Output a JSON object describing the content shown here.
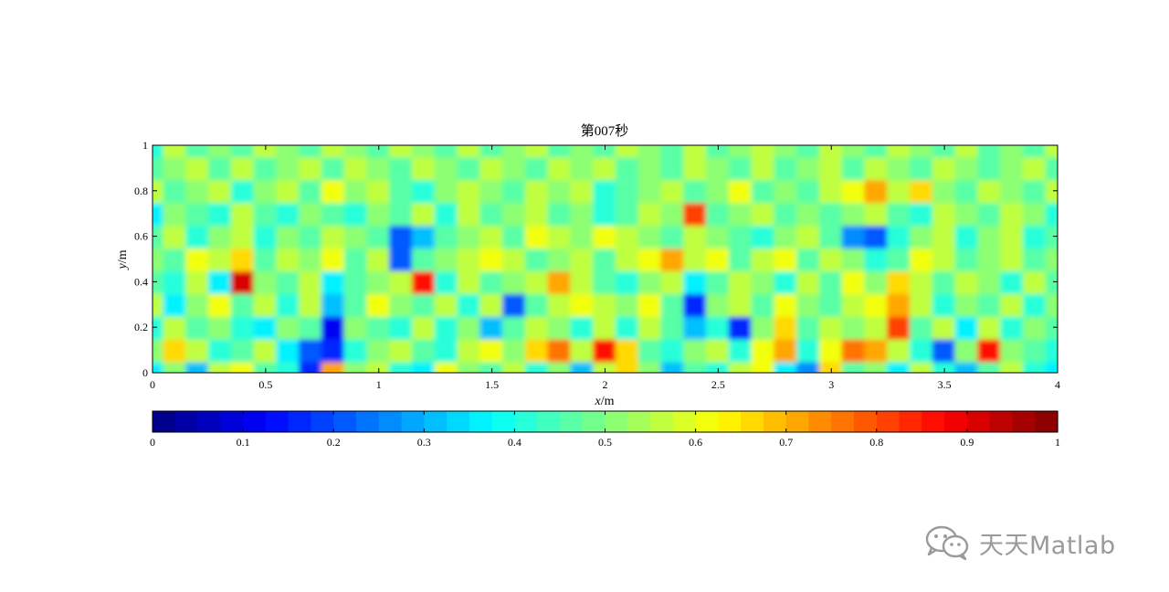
{
  "chart_data": {
    "type": "heatmap",
    "title": "第007秒",
    "xlabel_var": "x",
    "xlabel_unit": "/m",
    "ylabel_var": "y",
    "ylabel_unit": "/m",
    "xlim": [
      0,
      4
    ],
    "ylim": [
      0,
      1
    ],
    "xticks": [
      "0",
      "0.5",
      "1",
      "1.5",
      "2",
      "2.5",
      "3",
      "3.5",
      "4"
    ],
    "yticks": [
      "0",
      "0.2",
      "0.4",
      "0.6",
      "0.8",
      "1"
    ],
    "colorbar": {
      "orientation": "horizontal",
      "location": "below",
      "range": [
        0,
        1
      ],
      "levels": 40,
      "ticks": [
        "0",
        "0.1",
        "0.2",
        "0.3",
        "0.4",
        "0.5",
        "0.6",
        "0.7",
        "0.8",
        "0.9",
        "1"
      ],
      "colormap": "jet"
    },
    "grid": false,
    "legend": "none",
    "z_rows_y0_to_y1": [
      [
        0.35,
        0.5,
        0.3,
        0.55,
        0.6,
        0.45,
        0.4,
        0.15,
        0.7,
        0.5,
        0.55,
        0.4,
        0.35,
        0.6,
        0.5,
        0.45,
        0.55,
        0.4,
        0.5,
        0.3,
        0.55,
        0.65,
        0.5,
        0.3,
        0.45,
        0.4,
        0.55,
        0.6,
        0.35,
        0.25,
        0.65,
        0.45,
        0.5,
        0.35,
        0.55,
        0.4,
        0.3,
        0.45,
        0.55,
        0.4,
        0.35
      ],
      [
        0.5,
        0.65,
        0.55,
        0.4,
        0.45,
        0.55,
        0.35,
        0.2,
        0.15,
        0.4,
        0.5,
        0.55,
        0.45,
        0.4,
        0.55,
        0.6,
        0.5,
        0.65,
        0.75,
        0.55,
        0.85,
        0.65,
        0.45,
        0.4,
        0.5,
        0.55,
        0.4,
        0.6,
        0.7,
        0.4,
        0.6,
        0.75,
        0.7,
        0.55,
        0.4,
        0.2,
        0.5,
        0.85,
        0.5,
        0.45,
        0.4
      ],
      [
        0.4,
        0.55,
        0.45,
        0.5,
        0.4,
        0.35,
        0.5,
        0.45,
        0.1,
        0.5,
        0.45,
        0.4,
        0.55,
        0.4,
        0.5,
        0.3,
        0.45,
        0.55,
        0.5,
        0.4,
        0.55,
        0.4,
        0.55,
        0.45,
        0.3,
        0.4,
        0.15,
        0.5,
        0.65,
        0.45,
        0.55,
        0.5,
        0.55,
        0.8,
        0.45,
        0.55,
        0.35,
        0.55,
        0.4,
        0.5,
        0.45
      ],
      [
        0.55,
        0.35,
        0.5,
        0.6,
        0.45,
        0.55,
        0.4,
        0.55,
        0.3,
        0.45,
        0.6,
        0.5,
        0.45,
        0.55,
        0.4,
        0.55,
        0.2,
        0.45,
        0.55,
        0.6,
        0.55,
        0.5,
        0.6,
        0.45,
        0.15,
        0.5,
        0.55,
        0.45,
        0.6,
        0.5,
        0.45,
        0.55,
        0.6,
        0.7,
        0.55,
        0.4,
        0.5,
        0.45,
        0.55,
        0.4,
        0.5
      ],
      [
        0.45,
        0.4,
        0.55,
        0.35,
        0.9,
        0.5,
        0.45,
        0.55,
        0.35,
        0.45,
        0.5,
        0.55,
        0.85,
        0.4,
        0.55,
        0.45,
        0.5,
        0.55,
        0.7,
        0.55,
        0.45,
        0.4,
        0.5,
        0.55,
        0.35,
        0.45,
        0.55,
        0.5,
        0.4,
        0.55,
        0.45,
        0.6,
        0.5,
        0.65,
        0.55,
        0.45,
        0.55,
        0.5,
        0.4,
        0.55,
        0.45
      ],
      [
        0.5,
        0.45,
        0.6,
        0.55,
        0.65,
        0.45,
        0.55,
        0.5,
        0.6,
        0.45,
        0.55,
        0.2,
        0.45,
        0.5,
        0.55,
        0.6,
        0.55,
        0.45,
        0.5,
        0.55,
        0.45,
        0.55,
        0.6,
        0.7,
        0.55,
        0.6,
        0.45,
        0.55,
        0.6,
        0.45,
        0.55,
        0.5,
        0.4,
        0.45,
        0.6,
        0.55,
        0.45,
        0.5,
        0.55,
        0.45,
        0.5
      ],
      [
        0.45,
        0.55,
        0.4,
        0.5,
        0.55,
        0.4,
        0.5,
        0.45,
        0.55,
        0.5,
        0.45,
        0.2,
        0.3,
        0.45,
        0.5,
        0.55,
        0.45,
        0.6,
        0.55,
        0.5,
        0.6,
        0.55,
        0.5,
        0.45,
        0.55,
        0.5,
        0.45,
        0.4,
        0.5,
        0.55,
        0.45,
        0.25,
        0.2,
        0.4,
        0.5,
        0.55,
        0.4,
        0.5,
        0.55,
        0.4,
        0.45
      ],
      [
        0.35,
        0.5,
        0.45,
        0.4,
        0.55,
        0.45,
        0.4,
        0.5,
        0.45,
        0.4,
        0.5,
        0.45,
        0.55,
        0.4,
        0.55,
        0.45,
        0.5,
        0.55,
        0.45,
        0.5,
        0.4,
        0.45,
        0.55,
        0.5,
        0.8,
        0.45,
        0.5,
        0.55,
        0.45,
        0.5,
        0.45,
        0.5,
        0.55,
        0.45,
        0.4,
        0.55,
        0.5,
        0.45,
        0.55,
        0.5,
        0.4
      ],
      [
        0.55,
        0.45,
        0.5,
        0.55,
        0.4,
        0.5,
        0.55,
        0.45,
        0.6,
        0.5,
        0.55,
        0.45,
        0.4,
        0.5,
        0.55,
        0.5,
        0.45,
        0.55,
        0.5,
        0.55,
        0.4,
        0.45,
        0.5,
        0.55,
        0.45,
        0.5,
        0.6,
        0.45,
        0.5,
        0.45,
        0.55,
        0.6,
        0.7,
        0.55,
        0.65,
        0.5,
        0.45,
        0.55,
        0.5,
        0.45,
        0.55
      ],
      [
        0.45,
        0.5,
        0.55,
        0.45,
        0.55,
        0.45,
        0.5,
        0.55,
        0.45,
        0.55,
        0.5,
        0.45,
        0.55,
        0.5,
        0.45,
        0.55,
        0.5,
        0.45,
        0.55,
        0.5,
        0.55,
        0.45,
        0.5,
        0.45,
        0.55,
        0.5,
        0.45,
        0.55,
        0.45,
        0.5,
        0.55,
        0.45,
        0.55,
        0.5,
        0.45,
        0.55,
        0.5,
        0.45,
        0.5,
        0.55,
        0.45
      ],
      [
        0.4,
        0.55,
        0.45,
        0.5,
        0.45,
        0.55,
        0.5,
        0.45,
        0.55,
        0.5,
        0.45,
        0.55,
        0.5,
        0.45,
        0.55,
        0.45,
        0.5,
        0.55,
        0.45,
        0.5,
        0.45,
        0.55,
        0.5,
        0.45,
        0.55,
        0.45,
        0.5,
        0.55,
        0.5,
        0.45,
        0.55,
        0.5,
        0.45,
        0.55,
        0.5,
        0.45,
        0.55,
        0.45,
        0.5,
        0.45,
        0.55
      ]
    ]
  },
  "watermark": {
    "icon": "wechat-chat-icon",
    "text": "天天Matlab",
    "color": "#9a9a9a"
  }
}
